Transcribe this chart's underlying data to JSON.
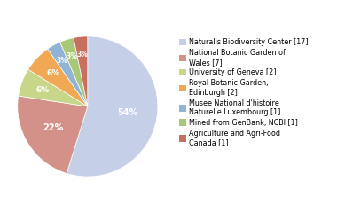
{
  "labels": [
    "Naturalis Biodiversity Center [17]",
    "National Botanic Garden of\nWales [7]",
    "University of Geneva [2]",
    "Royal Botanic Garden,\nEdinburgh [2]",
    "Musee National d'histoire\nNaturelle Luxembourg [1]",
    "Mined from GenBank, NCBI [1]",
    "Agriculture and Agri-Food\nCanada [1]"
  ],
  "values": [
    17,
    7,
    2,
    2,
    1,
    1,
    1
  ],
  "colors": [
    "#c5cfe8",
    "#d4918a",
    "#c8d68a",
    "#f0a854",
    "#92b4d4",
    "#a8c878",
    "#c87060"
  ],
  "pct_labels": [
    "54%",
    "22%",
    "6%",
    "6%",
    "3%",
    "3%",
    "3%"
  ],
  "legend_labels": [
    "Naturalis Biodiversity Center [17]",
    "National Botanic Garden of\nWales [7]",
    "University of Geneva [2]",
    "Royal Botanic Garden,\nEdinburgh [2]",
    "Musee National d'histoire\nNaturelle Luxembourg [1]",
    "Mined from GenBank, NCBI [1]",
    "Agriculture and Agri-Food\nCanada [1]"
  ],
  "startangle": 90,
  "background_color": "#ffffff"
}
